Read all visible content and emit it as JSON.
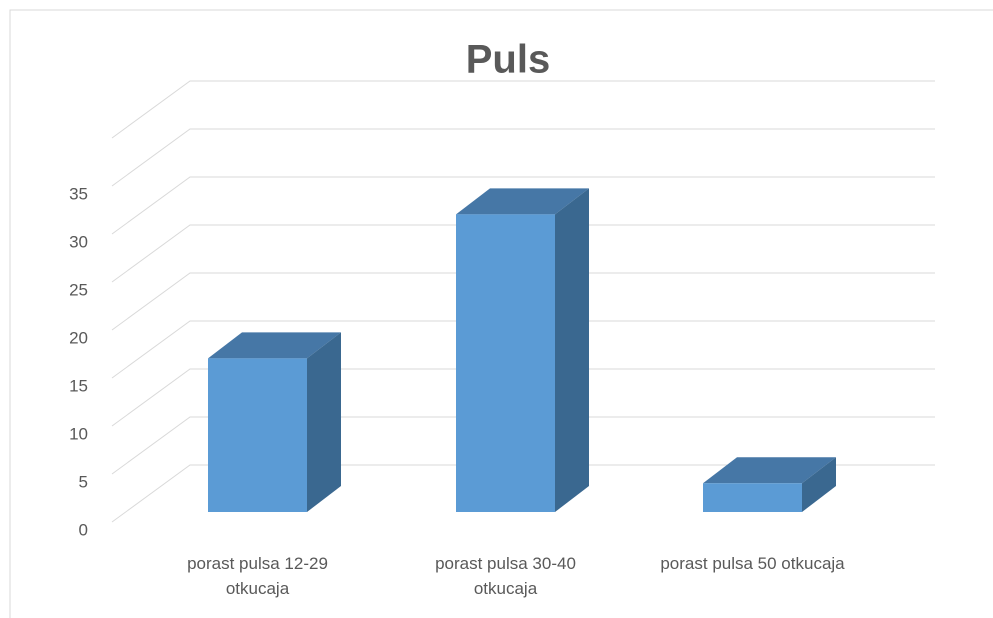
{
  "chart_data": {
    "type": "bar3d",
    "title": "Puls",
    "categories": [
      "porast pulsa 12-29 otkucaja",
      "porast pulsa 30-40 otkucaja",
      "porast pulsa 50 otkucaja"
    ],
    "values": [
      16,
      31,
      3
    ],
    "color": "#5b9bd5",
    "ylim": [
      0,
      40
    ],
    "yticks": [
      0,
      5,
      10,
      15,
      20,
      25,
      30,
      35
    ],
    "grid": true
  }
}
